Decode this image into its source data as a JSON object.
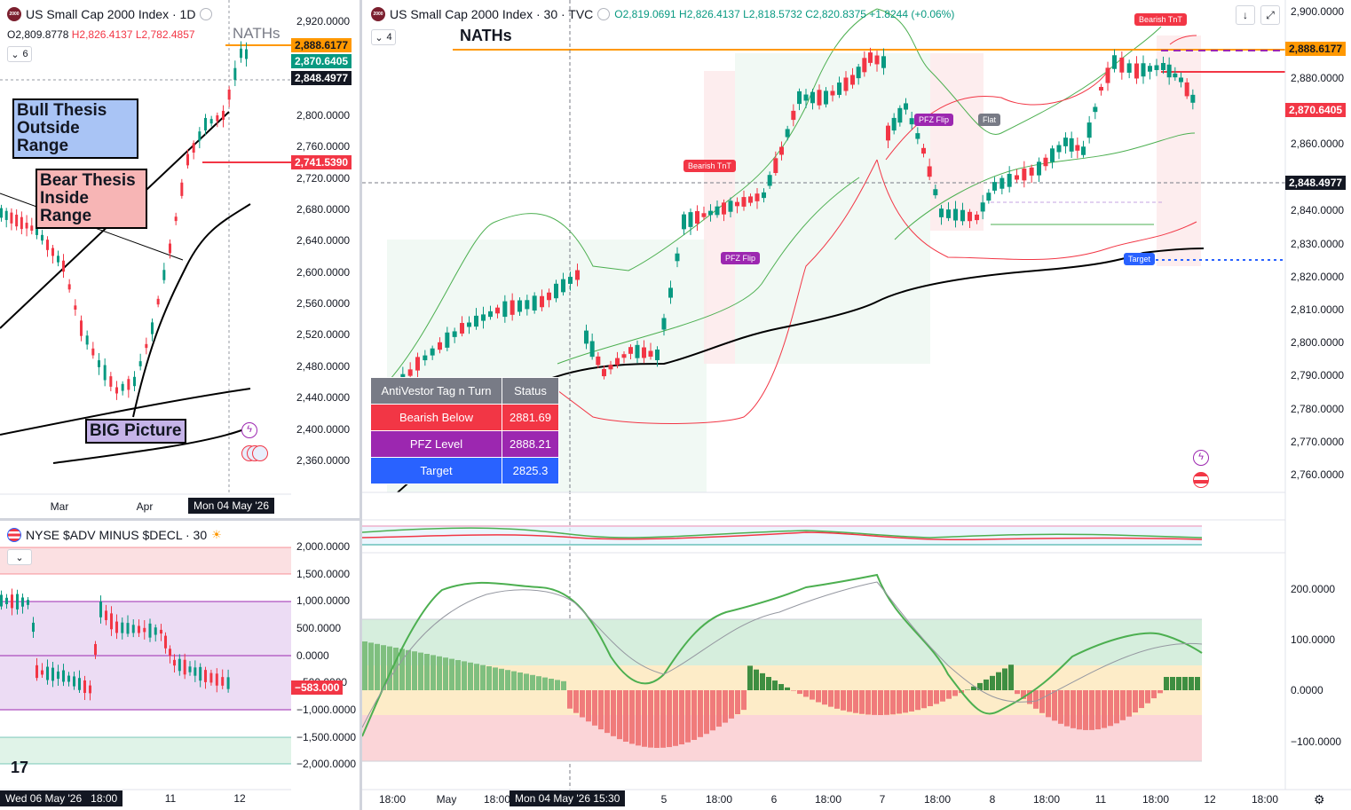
{
  "left_chart": {
    "title": "US Small Cap 2000 Index · 1D",
    "ohlc": {
      "o": "O2,809.8778",
      "h": "H2,826.4137",
      "l": "L2,782.4857"
    },
    "collapse_count": "6",
    "yaxis": [
      "2,920.0000",
      "2,840.0000",
      "2,800.0000",
      "2,760.0000",
      "2,720.0000",
      "2,680.0000",
      "2,640.0000",
      "2,600.0000",
      "2,560.0000",
      "2,520.0000",
      "2,480.0000",
      "2,440.0000",
      "2,400.0000",
      "2,360.0000"
    ],
    "tags": {
      "pfz": "2,888.6177",
      "last": "2,870.6405",
      "cross": "2,848.4977",
      "bearish": "2,741.5390"
    },
    "nath_label": "NATHs",
    "annotations": {
      "bull": "Bull Thesis Outside Range",
      "bear": "Bear Thesis Inside Range",
      "big": "BIG Picture"
    },
    "xaxis": {
      "mar": "Mar",
      "apr": "Apr",
      "highlight": "Mon 04 May '26"
    }
  },
  "adv_chart": {
    "title": "NYSE $ADV MINUS $DECL · 30",
    "yaxis": [
      "2,000.0000",
      "1,500.0000",
      "1,000.0000",
      "500.0000",
      "0.0000",
      "−500.0000",
      "−1,000.0000",
      "−1,500.0000",
      "−2,000.0000"
    ],
    "last_tag": "−583.000",
    "xaxis": {
      "highlight": "Wed 06 May '26",
      "t1800": "18:00",
      "d11": "11",
      "d12": "12"
    }
  },
  "main_chart": {
    "title": "US Small Cap 2000 Index · 30 · TVC",
    "ohlc": {
      "o": "O2,819.0691",
      "h": "H2,826.4137",
      "l": "L2,818.5732",
      "c": "C2,820.8375",
      "chg": "+1.8244 (+0.06%)"
    },
    "collapse_count": "4",
    "nath_label": "NATHs",
    "yaxis": [
      "2,900.0000",
      "2,880.0000",
      "2,860.0000",
      "2,840.0000",
      "2,830.0000",
      "2,820.0000",
      "2,810.0000",
      "2,800.0000",
      "2,790.0000",
      "2,780.0000",
      "2,770.0000",
      "2,760.0000"
    ],
    "tags": {
      "pfz": "2,888.6177",
      "last": "2,870.6405",
      "cross": "2,848.4977"
    },
    "signals": {
      "bearish_tnt": "Bearish TnT",
      "pfz_flip": "PFZ Flip",
      "flat": "Flat",
      "target": "Target"
    },
    "table": {
      "header": [
        "AntiVestor Tag n Turn",
        "Status"
      ],
      "rows": [
        {
          "label": "Bearish Below",
          "value": "2881.69",
          "color": "#f23645"
        },
        {
          "label": "PFZ Level",
          "value": "2888.21",
          "color": "#9c27b0"
        },
        {
          "label": "Target",
          "value": "2825.3",
          "color": "#2962ff"
        }
      ]
    },
    "osc_yaxis": [
      "200.0000",
      "100.0000",
      "0.0000",
      "−100.0000"
    ],
    "xaxis": [
      "18:00",
      "May",
      "18:00",
      "5",
      "18:00",
      "6",
      "18:00",
      "7",
      "18:00",
      "8",
      "18:00",
      "11",
      "18:00",
      "12",
      "18:00"
    ],
    "x_highlight": "Mon 04 May '26  15:30"
  },
  "colors": {
    "bull": "#089981",
    "bear": "#f23645",
    "accent": "#ff9800",
    "ink": "#131722"
  }
}
